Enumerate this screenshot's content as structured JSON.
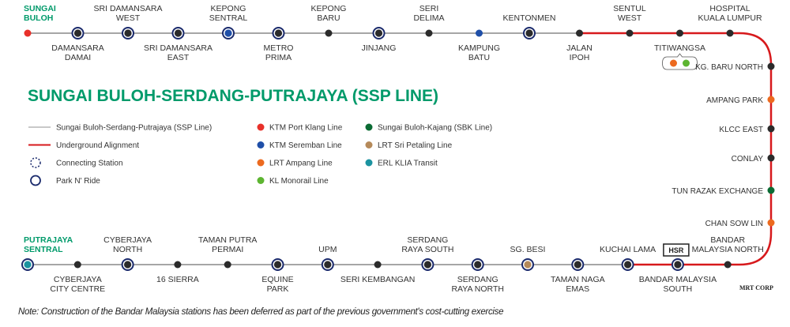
{
  "title": "SUNGAI BULOH-SERDANG-PUTRAJAYA (SSP LINE)",
  "colors": {
    "ssp_line": "#a6a6a6",
    "underground": "#d7191c",
    "title_green": "#009a6a",
    "park_ring": "#1a2a6c",
    "station_default": "#2b2b2b",
    "ktm_port_klang": "#e8312a",
    "ktm_seremban": "#1f4fa8",
    "lrt_ampang": "#ec6a1f",
    "kl_monorail": "#5db531",
    "sbk_line": "#0b6b34",
    "lrt_sri_petaling": "#b58a5a",
    "erl_klia": "#1b93a0"
  },
  "top_row": [
    {
      "name": "SUNGAI BULOH",
      "lines": [
        "SUNGAI",
        "BULOH"
      ],
      "label_pos": "above",
      "terminus": true,
      "color": "ktm_port_klang",
      "park_n_ride": false,
      "section": "surface"
    },
    {
      "name": "DAMANSARA DAMAI",
      "lines": [
        "DAMANSARA",
        "DAMAI"
      ],
      "label_pos": "below",
      "color": "station_default",
      "park_n_ride": true,
      "section": "surface"
    },
    {
      "name": "SRI DAMANSARA WEST",
      "lines": [
        "SRI DAMANSARA",
        "WEST"
      ],
      "label_pos": "above",
      "color": "station_default",
      "park_n_ride": true,
      "section": "surface"
    },
    {
      "name": "SRI DAMANSARA EAST",
      "lines": [
        "SRI DAMANSARA",
        "EAST"
      ],
      "label_pos": "below",
      "color": "station_default",
      "park_n_ride": true,
      "section": "surface"
    },
    {
      "name": "KEPONG SENTRAL",
      "lines": [
        "KEPONG",
        "SENTRAL"
      ],
      "label_pos": "above",
      "color": "ktm_seremban",
      "park_n_ride": true,
      "section": "surface"
    },
    {
      "name": "METRO PRIMA",
      "lines": [
        "METRO",
        "PRIMA"
      ],
      "label_pos": "below",
      "color": "station_default",
      "park_n_ride": true,
      "section": "surface"
    },
    {
      "name": "KEPONG BARU",
      "lines": [
        "KEPONG",
        "BARU"
      ],
      "label_pos": "above",
      "color": "station_default",
      "park_n_ride": false,
      "section": "surface"
    },
    {
      "name": "JINJANG",
      "lines": [
        "JINJANG"
      ],
      "label_pos": "below",
      "color": "station_default",
      "park_n_ride": true,
      "section": "surface"
    },
    {
      "name": "SERI DELIMA",
      "lines": [
        "SERI",
        "DELIMA"
      ],
      "label_pos": "above",
      "color": "station_default",
      "park_n_ride": false,
      "section": "surface"
    },
    {
      "name": "KAMPUNG BATU",
      "lines": [
        "KAMPUNG",
        "BATU"
      ],
      "label_pos": "below",
      "color": "ktm_seremban",
      "park_n_ride": false,
      "section": "surface"
    },
    {
      "name": "KENTONMEN",
      "lines": [
        "KENTONMEN"
      ],
      "label_pos": "above",
      "color": "station_default",
      "park_n_ride": true,
      "section": "surface"
    },
    {
      "name": "JALAN IPOH",
      "lines": [
        "JALAN",
        "IPOH"
      ],
      "label_pos": "below",
      "color": "station_default",
      "park_n_ride": false,
      "section": "underground"
    },
    {
      "name": "SENTUL WEST",
      "lines": [
        "SENTUL",
        "WEST"
      ],
      "label_pos": "above",
      "color": "station_default",
      "park_n_ride": false,
      "section": "underground"
    },
    {
      "name": "TITIWANGSA",
      "lines": [
        "TITIWANGSA"
      ],
      "label_pos": "below",
      "color": "station_default",
      "park_n_ride": false,
      "section": "underground",
      "interchange": [
        "lrt_ampang",
        "kl_monorail"
      ]
    },
    {
      "name": "HOSPITAL KUALA LUMPUR",
      "lines": [
        "HOSPITAL",
        "KUALA LUMPUR"
      ],
      "label_pos": "above",
      "color": "station_default",
      "park_n_ride": false,
      "section": "underground"
    }
  ],
  "right_column": [
    {
      "name": "KG. BARU NORTH",
      "color": "station_default"
    },
    {
      "name": "AMPANG PARK",
      "color": "lrt_ampang"
    },
    {
      "name": "KLCC EAST",
      "color": "station_default"
    },
    {
      "name": "CONLAY",
      "color": "station_default"
    },
    {
      "name": "TUN RAZAK EXCHANGE",
      "color": "sbk_line"
    },
    {
      "name": "CHAN SOW LIN",
      "color": "lrt_ampang"
    }
  ],
  "bottom_row": [
    {
      "name": "PUTRAJAYA SENTRAL",
      "lines": [
        "PUTRAJAYA",
        "SENTRAL"
      ],
      "label_pos": "above",
      "terminus": true,
      "color": "erl_klia",
      "park_n_ride": true,
      "section": "surface"
    },
    {
      "name": "CYBERJAYA CITY CENTRE",
      "lines": [
        "CYBERJAYA",
        "CITY CENTRE"
      ],
      "label_pos": "below",
      "color": "station_default",
      "park_n_ride": false,
      "section": "surface"
    },
    {
      "name": "CYBERJAYA NORTH",
      "lines": [
        "CYBERJAYA",
        "NORTH"
      ],
      "label_pos": "above",
      "color": "station_default",
      "park_n_ride": true,
      "section": "surface"
    },
    {
      "name": "16 SIERRA",
      "lines": [
        "16 SIERRA"
      ],
      "label_pos": "below",
      "color": "station_default",
      "park_n_ride": false,
      "section": "surface"
    },
    {
      "name": "TAMAN PUTRA PERMAI",
      "lines": [
        "TAMAN PUTRA",
        "PERMAI"
      ],
      "label_pos": "above",
      "color": "station_default",
      "park_n_ride": false,
      "section": "surface"
    },
    {
      "name": "EQUINE PARK",
      "lines": [
        "EQUINE",
        "PARK"
      ],
      "label_pos": "below",
      "color": "station_default",
      "park_n_ride": true,
      "section": "surface"
    },
    {
      "name": "UPM",
      "lines": [
        "UPM"
      ],
      "label_pos": "above",
      "color": "station_default",
      "park_n_ride": true,
      "section": "surface"
    },
    {
      "name": "SERI KEMBANGAN",
      "lines": [
        "SERI KEMBANGAN"
      ],
      "label_pos": "below",
      "color": "station_default",
      "park_n_ride": false,
      "section": "surface"
    },
    {
      "name": "SERDANG RAYA SOUTH",
      "lines": [
        "SERDANG",
        "RAYA SOUTH"
      ],
      "label_pos": "above",
      "color": "station_default",
      "park_n_ride": true,
      "section": "surface"
    },
    {
      "name": "SERDANG RAYA NORTH",
      "lines": [
        "SERDANG",
        "RAYA NORTH"
      ],
      "label_pos": "below",
      "color": "station_default",
      "park_n_ride": true,
      "section": "surface"
    },
    {
      "name": "SG. BESI",
      "lines": [
        "SG. BESI"
      ],
      "label_pos": "above",
      "color": "lrt_sri_petaling",
      "park_n_ride": true,
      "section": "surface"
    },
    {
      "name": "TAMAN NAGA EMAS",
      "lines": [
        "TAMAN NAGA",
        "EMAS"
      ],
      "label_pos": "below",
      "color": "station_default",
      "park_n_ride": true,
      "section": "surface"
    },
    {
      "name": "KUCHAI LAMA",
      "lines": [
        "KUCHAI LAMA"
      ],
      "label_pos": "above",
      "color": "station_default",
      "park_n_ride": true,
      "section": "underground"
    },
    {
      "name": "BANDAR MALAYSIA SOUTH",
      "lines": [
        "BANDAR MALAYSIA",
        "SOUTH"
      ],
      "label_pos": "below",
      "color": "station_default",
      "park_n_ride": true,
      "section": "underground",
      "badge": "HSR"
    },
    {
      "name": "BANDAR MALAYSIA NORTH",
      "lines": [
        "BANDAR",
        "MALAYSIA NORTH"
      ],
      "label_pos": "above",
      "color": "station_default",
      "park_n_ride": false,
      "section": "underground"
    }
  ],
  "legend": {
    "col1": [
      {
        "type": "line",
        "color": "ssp_line",
        "label": "Sungai Buloh-Serdang-Putrajaya (SSP Line)"
      },
      {
        "type": "line",
        "color": "underground",
        "label": "Underground Alignment"
      },
      {
        "type": "dashed-ring",
        "color": "park_ring",
        "label": "Connecting Station"
      },
      {
        "type": "ring",
        "color": "park_ring",
        "label": "Park N' Ride"
      }
    ],
    "col2": [
      {
        "type": "dot",
        "color": "ktm_port_klang",
        "label": "KTM Port Klang Line"
      },
      {
        "type": "dot",
        "color": "ktm_seremban",
        "label": "KTM Seremban Line"
      },
      {
        "type": "dot",
        "color": "lrt_ampang",
        "label": "LRT Ampang Line"
      },
      {
        "type": "dot",
        "color": "kl_monorail",
        "label": "KL Monorail Line"
      }
    ],
    "col3": [
      {
        "type": "dot",
        "color": "sbk_line",
        "label": "Sungai Buloh-Kajang (SBK Line)"
      },
      {
        "type": "dot",
        "color": "lrt_sri_petaling",
        "label": "LRT Sri Petaling Line"
      },
      {
        "type": "dot",
        "color": "erl_klia",
        "label": "ERL KLIA Transit"
      }
    ]
  },
  "note": "Note: Construction of the Bandar Malaysia stations has been deferred as part of the previous government's cost-cutting exercise",
  "credit": "MRT CORP"
}
